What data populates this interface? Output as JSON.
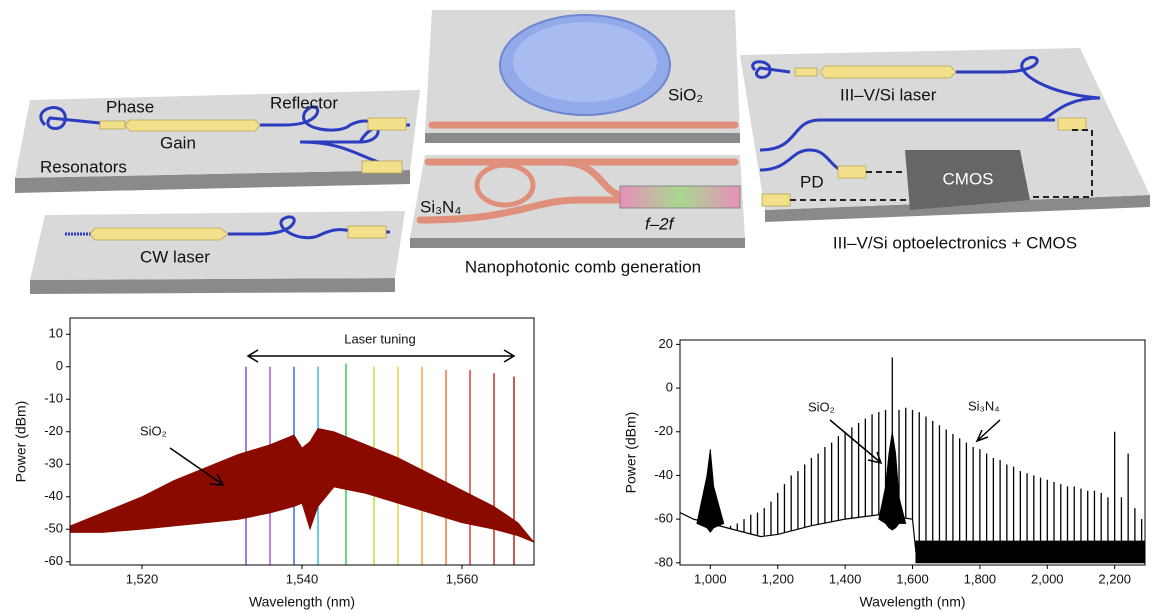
{
  "diagram": {
    "labels": {
      "phase": "Phase",
      "gain": "Gain",
      "reflector": "Reflector",
      "resonators": "Resonators",
      "cw_laser": "CW laser",
      "sio2": "SiO₂",
      "si3n4": "Si₃N₄",
      "f2f": "f–2f",
      "comb": "Nanophotonic comb generation",
      "laser": "III–V/Si laser",
      "pd": "PD",
      "cmos": "CMOS",
      "opto": "III–V/Si optoelectronics + CMOS"
    }
  },
  "chart_data": [
    {
      "type": "spectrum",
      "xlabel": "Wavelength (nm)",
      "ylabel": "Power (dBm)",
      "annotations": [
        "Laser tuning",
        "SiO₂"
      ],
      "xlim": [
        1511,
        1569
      ],
      "xticks": [
        {
          "value": 1520,
          "label": "1,520"
        },
        {
          "value": 1540,
          "label": "1,540"
        },
        {
          "value": 1560,
          "label": "1,560"
        }
      ],
      "ylim": [
        -61,
        15
      ],
      "yticks": [
        -60,
        -50,
        -40,
        -30,
        -20,
        -10,
        0,
        10
      ],
      "series": [
        {
          "type": "stem",
          "x": [
            1533,
            1536,
            1539,
            1542,
            1545.5,
            1549,
            1552,
            1555,
            1558,
            1561,
            1564,
            1566.5
          ],
          "values": [
            0,
            0,
            0,
            0,
            1,
            0,
            0,
            0,
            -1,
            -1,
            -2,
            -3
          ],
          "colors": [
            "#7b2fbf",
            "#a13de0",
            "#2050e0",
            "#20b0e0",
            "#20c040",
            "#b0e020",
            "#e0d020",
            "#f0a020",
            "#f06020",
            "#e02020",
            "#c01010",
            "#b00000"
          ]
        },
        {
          "type": "band",
          "color": "#8b0a00",
          "x": [
            1511,
            1515,
            1520,
            1524,
            1528,
            1532,
            1536,
            1539,
            1540,
            1541,
            1542,
            1544,
            1548,
            1552,
            1556,
            1560,
            1564,
            1567,
            1569
          ],
          "values": [
            -49,
            -45,
            -40,
            -35,
            -31,
            -27,
            -24,
            -21,
            -25,
            -23,
            -19,
            -20,
            -24,
            -28,
            -33,
            -38,
            -43,
            -48,
            -54
          ],
          "lower": [
            -51,
            -51,
            -50,
            -49,
            -48,
            -47,
            -45,
            -43,
            -42,
            -50,
            -43,
            -37,
            -39,
            -42,
            -45,
            -48,
            -50,
            -52,
            -54
          ]
        }
      ]
    },
    {
      "type": "spectrum",
      "xlabel": "Wavelength (nm)",
      "ylabel": "Power (dBm)",
      "annotations": [
        "SiO₂",
        "Si₃N₄"
      ],
      "xlim": [
        910,
        2290
      ],
      "xticks": [
        {
          "value": 1000,
          "label": "1,000"
        },
        {
          "value": 1200,
          "label": "1,200"
        },
        {
          "value": 1400,
          "label": "1,400"
        },
        {
          "value": 1600,
          "label": "1,600"
        },
        {
          "value": 1800,
          "label": "1,800"
        },
        {
          "value": 2000,
          "label": "2,000"
        },
        {
          "value": 2200,
          "label": "2,200"
        }
      ],
      "ylim": [
        -81,
        22
      ],
      "yticks": [
        -80,
        -60,
        -40,
        -20,
        0,
        20
      ],
      "series": [
        {
          "type": "line",
          "color": "#000000",
          "x": [
            910,
            950,
            1000,
            1050,
            1100,
            1150,
            1200,
            1250,
            1300,
            1400,
            1500,
            1600,
            1610,
            1700,
            1800,
            1900,
            2000,
            2100,
            2200,
            2290
          ],
          "values": [
            -57,
            -60,
            -62,
            -64,
            -66,
            -68,
            -67,
            -65,
            -63,
            -60,
            -58,
            -60,
            -75,
            -74,
            -74,
            -73,
            -74,
            -73,
            -74,
            -74
          ]
        },
        {
          "type": "stem",
          "color": "#000000",
          "x": [
            1060,
            1080,
            1100,
            1120,
            1140,
            1160,
            1180,
            1200,
            1220,
            1240,
            1260,
            1280,
            1300,
            1320,
            1340,
            1360,
            1380,
            1400,
            1420,
            1440,
            1460,
            1480,
            1500,
            1520,
            1540,
            1560,
            1580,
            1600,
            1620,
            1640,
            1660,
            1680,
            1700,
            1720,
            1740,
            1760,
            1780,
            1800,
            1820,
            1840,
            1860,
            1880,
            1900,
            1920,
            1940,
            1960,
            1980,
            2000,
            2020,
            2040,
            2060,
            2080,
            2100,
            2120,
            2140,
            2160,
            2180,
            2200,
            2220,
            2240,
            2260,
            2280
          ],
          "values": [
            -63,
            -62,
            -60,
            -58,
            -57,
            -55,
            -52,
            -48,
            -44,
            -40,
            -38,
            -35,
            -32,
            -30,
            -27,
            -25,
            -22,
            -20,
            -18,
            -16,
            -14,
            -12,
            -11,
            -10,
            14,
            -10,
            -9,
            -10,
            -11,
            -13,
            -15,
            -17,
            -19,
            -21,
            -23,
            -25,
            -27,
            -28,
            -30,
            -32,
            -33,
            -35,
            -36,
            -38,
            -39,
            -40,
            -41,
            -42,
            -43,
            -44,
            -45,
            -45,
            -46,
            -47,
            -47,
            -48,
            -50,
            -20,
            -50,
            -30,
            -55,
            -60
          ]
        },
        {
          "type": "band",
          "color": "#000000",
          "x": [
            960,
            990,
            1000,
            1010,
            1040
          ],
          "values": [
            -62,
            -40,
            -28,
            -45,
            -62
          ],
          "lower": [
            -62,
            -64,
            -66,
            -64,
            -62
          ]
        },
        {
          "type": "band",
          "color": "#000000",
          "x": [
            1500,
            1520,
            1530,
            1540,
            1550,
            1560,
            1580
          ],
          "values": [
            -60,
            -45,
            -30,
            -20,
            -30,
            -50,
            -62
          ],
          "lower": [
            -60,
            -62,
            -64,
            -65,
            -64,
            -62,
            -62
          ]
        },
        {
          "type": "band",
          "color": "#000000",
          "x": [
            1610,
            2290
          ],
          "values": [
            -70,
            -70
          ],
          "lower": [
            -80,
            -80
          ]
        }
      ]
    }
  ]
}
